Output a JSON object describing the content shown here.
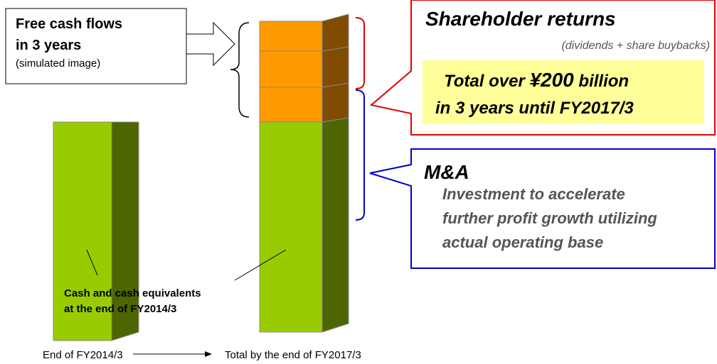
{
  "free_cash_flows": {
    "lines": [
      "Free cash flows",
      "in 3 years"
    ],
    "note": "(simulated image)"
  },
  "shareholder_returns": {
    "title": "Shareholder returns",
    "subtitle": "(dividends + share buybacks)",
    "total": {
      "line1": [
        "Total over ",
        "¥200",
        " billion"
      ],
      "line2": "in 3 years until FY2017/3"
    }
  },
  "ma": {
    "title": "M&A",
    "lines": [
      "Investment to accelerate",
      "further profit growth utilizing",
      "actual operating base"
    ]
  },
  "cash_label": [
    "Cash and cash equivalents",
    "at the end of FY2014/3"
  ],
  "x_labels": [
    "End of FY2014/3",
    "Total by the end of FY2017/3"
  ]
}
